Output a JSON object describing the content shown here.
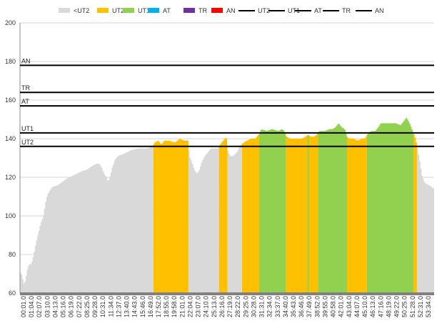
{
  "chart_data": {
    "type": "area",
    "title": "",
    "xlabel": "",
    "ylabel": "",
    "ylim": [
      60,
      200
    ],
    "y_ticks": [
      60,
      80,
      100,
      120,
      140,
      160,
      180,
      200
    ],
    "grid": "horizontal",
    "legend_position": "top",
    "legend": [
      "<UT2",
      "UT2",
      "UT1",
      "AT",
      "TR",
      "AN",
      "UT2",
      "UT1",
      "AT",
      "TR",
      "AN"
    ],
    "colors": {
      "lt_ut2": "#d9d9d9",
      "ut2": "#ffc000",
      "ut1": "#92d050",
      "at": "#00b0f0",
      "tr": "#7030a0",
      "an": "#ff0000",
      "line": "#000000"
    },
    "x_tick_labels": [
      "00:01.0",
      "01:04.0",
      "02:07.0",
      "03:10.0",
      "04:13.0",
      "05:16.0",
      "06:19.0",
      "07:22.0",
      "08:25.0",
      "09:28.0",
      "10:31.0",
      "11:34.0",
      "12:37.0",
      "13:40.0",
      "14:43.0",
      "15:46.0",
      "16:49.0",
      "17:52.0",
      "18:55.0",
      "19:58.0",
      "21:01.0",
      "22:04.0",
      "23:07.0",
      "24:10.0",
      "25:13.0",
      "26:16.0",
      "27:19.0",
      "28:22.0",
      "29:25.0",
      "30:28.0",
      "31:31.0",
      "32:34.0",
      "33:37.0",
      "34:40.0",
      "35:43.0",
      "36:46.0",
      "37:49.0",
      "38:52.0",
      "39:55.0",
      "40:58.0",
      "42:01.0",
      "43:04.0",
      "44:07.0",
      "45:10.0",
      "46:13.0",
      "47:16.0",
      "48:19.0",
      "49:22.0",
      "50:25.0",
      "51:28.0",
      "52:31.0",
      "53:34.0"
    ],
    "x_range_min": [
      0,
      54.2
    ],
    "thresholds": [
      {
        "name": "AN",
        "value": 178
      },
      {
        "name": "TR",
        "value": 164
      },
      {
        "name": "AT",
        "value": 157
      },
      {
        "name": "UT1",
        "value": 143
      },
      {
        "name": "UT2",
        "value": 136
      }
    ],
    "heart_rate_profile_min": [
      [
        0.0,
        71
      ],
      [
        0.2,
        70
      ],
      [
        0.45,
        66
      ],
      [
        0.6,
        64
      ],
      [
        0.75,
        68
      ],
      [
        0.9,
        70
      ],
      [
        1.0,
        73
      ],
      [
        1.2,
        75
      ],
      [
        1.5,
        75
      ],
      [
        1.8,
        80
      ],
      [
        2.1,
        86
      ],
      [
        2.4,
        91
      ],
      [
        2.7,
        96
      ],
      [
        3.0,
        99
      ],
      [
        3.2,
        103
      ],
      [
        3.4,
        108
      ],
      [
        3.6,
        111
      ],
      [
        3.9,
        113
      ],
      [
        4.2,
        115
      ],
      [
        5.0,
        116
      ],
      [
        6.0,
        119
      ],
      [
        7.0,
        121
      ],
      [
        8.0,
        123
      ],
      [
        8.8,
        124
      ],
      [
        9.5,
        126
      ],
      [
        10.0,
        127
      ],
      [
        10.4,
        127
      ],
      [
        10.7,
        125
      ],
      [
        11.0,
        122
      ],
      [
        11.3,
        120
      ],
      [
        11.5,
        118
      ],
      [
        11.8,
        120
      ],
      [
        12.0,
        124
      ],
      [
        12.4,
        129
      ],
      [
        12.8,
        131
      ],
      [
        13.5,
        132
      ],
      [
        14.5,
        134
      ],
      [
        15.5,
        135
      ],
      [
        16.6,
        135
      ],
      [
        17.4,
        136
      ],
      [
        17.6,
        138
      ],
      [
        18.1,
        139
      ],
      [
        18.5,
        137
      ],
      [
        18.9,
        139
      ],
      [
        19.5,
        139
      ],
      [
        20.3,
        138
      ],
      [
        20.9,
        140
      ],
      [
        21.5,
        139
      ],
      [
        22.0,
        139
      ],
      [
        22.2,
        131
      ],
      [
        22.5,
        128
      ],
      [
        22.8,
        124
      ],
      [
        23.2,
        122
      ],
      [
        23.5,
        124
      ],
      [
        23.8,
        128
      ],
      [
        24.2,
        131
      ],
      [
        24.6,
        133
      ],
      [
        25.0,
        135
      ],
      [
        25.5,
        135
      ],
      [
        25.9,
        135
      ],
      [
        26.2,
        137
      ],
      [
        26.6,
        139
      ],
      [
        27.0,
        141
      ],
      [
        27.2,
        134
      ],
      [
        27.5,
        131
      ],
      [
        27.9,
        131
      ],
      [
        28.4,
        133
      ],
      [
        28.9,
        137
      ],
      [
        29.3,
        138
      ],
      [
        29.7,
        139
      ],
      [
        30.2,
        140
      ],
      [
        30.8,
        140
      ],
      [
        31.2,
        142
      ],
      [
        31.6,
        145
      ],
      [
        32.3,
        144
      ],
      [
        33.0,
        145
      ],
      [
        33.8,
        144
      ],
      [
        34.3,
        145
      ],
      [
        34.6,
        144
      ],
      [
        34.9,
        141
      ],
      [
        35.4,
        140
      ],
      [
        36.2,
        140
      ],
      [
        36.9,
        140
      ],
      [
        37.3,
        141
      ],
      [
        37.7,
        142
      ],
      [
        38.1,
        141
      ],
      [
        38.5,
        141
      ],
      [
        38.8,
        142
      ],
      [
        39.2,
        144
      ],
      [
        39.9,
        144
      ],
      [
        40.5,
        145
      ],
      [
        40.9,
        145
      ],
      [
        41.3,
        146
      ],
      [
        41.7,
        148
      ],
      [
        42.1,
        146
      ],
      [
        42.5,
        145
      ],
      [
        42.8,
        141
      ],
      [
        43.2,
        140
      ],
      [
        43.7,
        140
      ],
      [
        44.2,
        139
      ],
      [
        44.7,
        140
      ],
      [
        45.1,
        140
      ],
      [
        45.6,
        143
      ],
      [
        46.0,
        144
      ],
      [
        46.5,
        144
      ],
      [
        46.9,
        146
      ],
      [
        47.2,
        148
      ],
      [
        48.0,
        148
      ],
      [
        48.8,
        148
      ],
      [
        49.2,
        148
      ],
      [
        49.8,
        147
      ],
      [
        50.2,
        149
      ],
      [
        50.6,
        151
      ],
      [
        51.0,
        148
      ],
      [
        51.3,
        145
      ],
      [
        51.7,
        141
      ],
      [
        52.0,
        136
      ],
      [
        52.3,
        129
      ],
      [
        52.6,
        121
      ],
      [
        53.0,
        117
      ],
      [
        53.5,
        116
      ],
      [
        53.9,
        115
      ],
      [
        54.2,
        114
      ]
    ],
    "zone_segments_min": [
      {
        "zone": "lt_ut2",
        "from": 0.0,
        "to": 17.45
      },
      {
        "zone": "ut2",
        "from": 17.45,
        "to": 22.05
      },
      {
        "zone": "lt_ut2",
        "from": 22.05,
        "to": 26.05
      },
      {
        "zone": "ut2",
        "from": 26.05,
        "to": 27.15
      },
      {
        "zone": "lt_ut2",
        "from": 27.15,
        "to": 29.05
      },
      {
        "zone": "ut2",
        "from": 29.05,
        "to": 31.3
      },
      {
        "zone": "ut1",
        "from": 31.3,
        "to": 34.8
      },
      {
        "zone": "ut2",
        "from": 34.8,
        "to": 37.6
      },
      {
        "zone": "ut1",
        "from": 37.6,
        "to": 37.8
      },
      {
        "zone": "ut2",
        "from": 37.8,
        "to": 39.0
      },
      {
        "zone": "ut1",
        "from": 39.0,
        "to": 42.8
      },
      {
        "zone": "ut2",
        "from": 42.8,
        "to": 45.4
      },
      {
        "zone": "ut1",
        "from": 45.4,
        "to": 51.5
      },
      {
        "zone": "ut2",
        "from": 51.5,
        "to": 51.95
      },
      {
        "zone": "lt_ut2",
        "from": 51.95,
        "to": 54.2
      }
    ]
  }
}
